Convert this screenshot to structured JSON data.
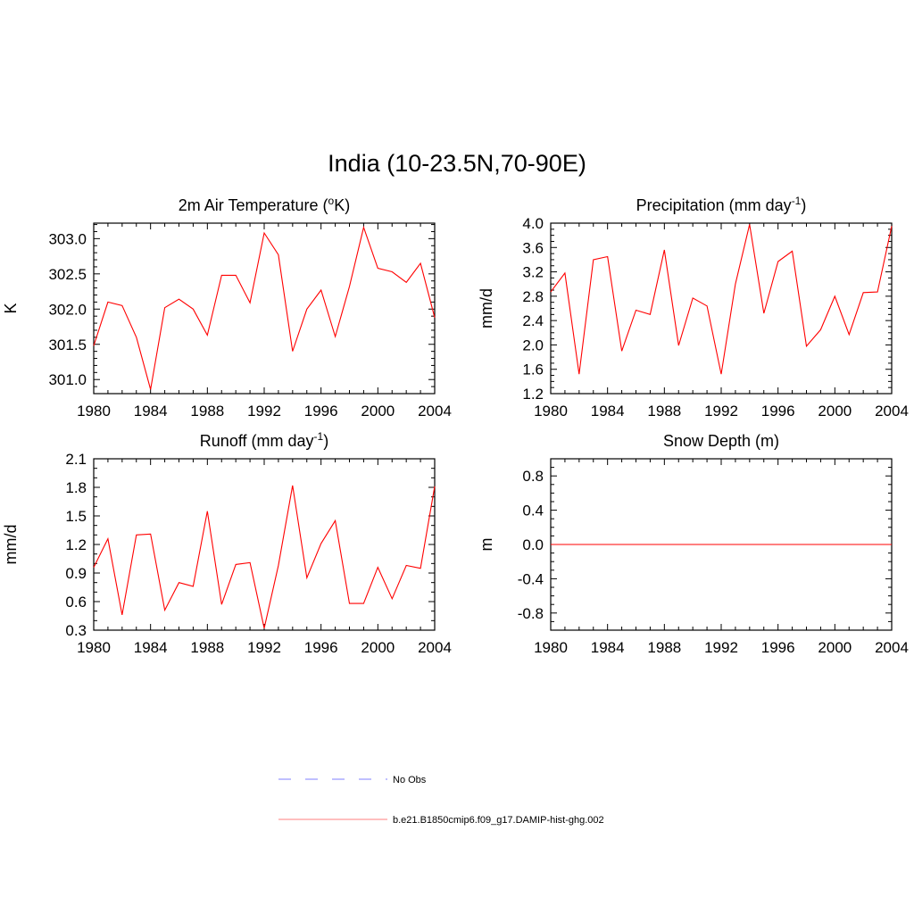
{
  "title": "India (10-23.5N,70-90E)",
  "chart_data": [
    {
      "type": "line",
      "title_main": "2m Air Temperature (",
      "title_sup": "o",
      "title_tail": "K)",
      "ylabel": "K",
      "x": [
        1980,
        1981,
        1982,
        1983,
        1984,
        1985,
        1986,
        1987,
        1988,
        1989,
        1990,
        1991,
        1992,
        1993,
        1994,
        1995,
        1996,
        1997,
        1998,
        1999,
        2000,
        2001,
        2002,
        2003,
        2004
      ],
      "values": [
        301.48,
        302.1,
        302.05,
        301.6,
        300.86,
        302.02,
        302.14,
        302.0,
        301.63,
        302.48,
        302.48,
        302.09,
        303.08,
        302.77,
        301.4,
        302.0,
        302.27,
        301.61,
        302.32,
        303.16,
        302.58,
        302.53,
        302.38,
        302.65,
        301.88
      ],
      "xlim": [
        1980,
        2004
      ],
      "ylim": [
        300.8,
        303.22
      ],
      "xticks": [
        1980,
        1984,
        1988,
        1992,
        1996,
        2000,
        2004
      ],
      "yticks": [
        301.0,
        301.5,
        302.0,
        302.5,
        303.0
      ],
      "ytick_labels": [
        "301.0",
        "301.5",
        "302.0",
        "302.5",
        "303.0"
      ],
      "yminor_step": 0.1,
      "color": "#ff0000"
    },
    {
      "type": "line",
      "title_main": "Precipitation (mm day",
      "title_sup": "-1",
      "title_tail": ")",
      "ylabel": "mm/d",
      "x": [
        1980,
        1981,
        1982,
        1983,
        1984,
        1985,
        1986,
        1987,
        1988,
        1989,
        1990,
        1991,
        1992,
        1993,
        1994,
        1995,
        1996,
        1997,
        1998,
        1999,
        2000,
        2001,
        2002,
        2003,
        2004
      ],
      "values": [
        2.87,
        3.18,
        1.52,
        3.4,
        3.45,
        1.9,
        2.57,
        2.5,
        3.56,
        1.99,
        2.77,
        2.64,
        1.52,
        3.0,
        3.98,
        2.52,
        3.37,
        3.54,
        1.98,
        2.25,
        2.8,
        2.17,
        2.86,
        2.87,
        3.95
      ],
      "xlim": [
        1980,
        2004
      ],
      "ylim": [
        1.2,
        4.0
      ],
      "xticks": [
        1980,
        1984,
        1988,
        1992,
        1996,
        2000,
        2004
      ],
      "yticks": [
        1.2,
        1.6,
        2.0,
        2.4,
        2.8,
        3.2,
        3.6,
        4.0
      ],
      "ytick_labels": [
        "1.2",
        "1.6",
        "2.0",
        "2.4",
        "2.8",
        "3.2",
        "3.6",
        "4.0"
      ],
      "yminor_step": 0.1,
      "color": "#ff0000"
    },
    {
      "type": "line",
      "title_main": "Runoff (mm day",
      "title_sup": "-1",
      "title_tail": ")",
      "ylabel": "mm/d",
      "x": [
        1980,
        1981,
        1982,
        1983,
        1984,
        1985,
        1986,
        1987,
        1988,
        1989,
        1990,
        1991,
        1992,
        1993,
        1994,
        1995,
        1996,
        1997,
        1998,
        1999,
        2000,
        2001,
        2002,
        2003,
        2004
      ],
      "values": [
        0.96,
        1.26,
        0.46,
        1.3,
        1.31,
        0.51,
        0.8,
        0.76,
        1.55,
        0.57,
        0.99,
        1.01,
        0.32,
        0.98,
        1.82,
        0.85,
        1.21,
        1.45,
        0.58,
        0.58,
        0.96,
        0.63,
        0.98,
        0.95,
        1.81
      ],
      "xlim": [
        1980,
        2004
      ],
      "ylim": [
        0.3,
        2.1
      ],
      "xticks": [
        1980,
        1984,
        1988,
        1992,
        1996,
        2000,
        2004
      ],
      "yticks": [
        0.3,
        0.6,
        0.9,
        1.2,
        1.5,
        1.8,
        2.1
      ],
      "ytick_labels": [
        "0.3",
        "0.6",
        "0.9",
        "1.2",
        "1.5",
        "1.8",
        "2.1"
      ],
      "yminor_step": 0.1,
      "color": "#ff0000"
    },
    {
      "type": "line",
      "title_main": "Snow Depth (m)",
      "title_sup": "",
      "title_tail": "",
      "ylabel": "m",
      "x": [
        1980,
        1981,
        1982,
        1983,
        1984,
        1985,
        1986,
        1987,
        1988,
        1989,
        1990,
        1991,
        1992,
        1993,
        1994,
        1995,
        1996,
        1997,
        1998,
        1999,
        2000,
        2001,
        2002,
        2003,
        2004
      ],
      "values": [
        0,
        0,
        0,
        0,
        0,
        0,
        0,
        0,
        0,
        0,
        0,
        0,
        0,
        0,
        0,
        0,
        0,
        0,
        0,
        0,
        0,
        0,
        0,
        0,
        0
      ],
      "xlim": [
        1980,
        2004
      ],
      "ylim": [
        -1.0,
        1.0
      ],
      "xticks": [
        1980,
        1984,
        1988,
        1992,
        1996,
        2000,
        2004
      ],
      "yticks": [
        -0.8,
        -0.4,
        0.0,
        0.4,
        0.8
      ],
      "ytick_labels": [
        "-0.8",
        "-0.4",
        "0.0",
        "0.4",
        "0.8"
      ],
      "yminor_step": 0.1,
      "color": "#ff0000"
    }
  ],
  "legend": [
    {
      "label": "No Obs",
      "color": "#9999ff",
      "dash": true
    },
    {
      "label": "b.e21.B1850cmip6.f09_g17.DAMIP-hist-ghg.002",
      "color": "#ff9999",
      "dash": false
    }
  ]
}
